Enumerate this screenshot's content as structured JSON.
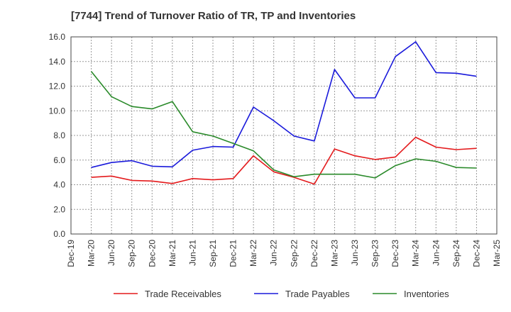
{
  "chart_data": {
    "type": "line",
    "title": "[7744]  Trend of Turnover Ratio of TR, TP and Inventories",
    "xlabel": "",
    "ylabel": "",
    "ylim": [
      0,
      16
    ],
    "yticks": [
      "0.0",
      "2.0",
      "4.0",
      "6.0",
      "8.0",
      "10.0",
      "12.0",
      "14.0",
      "16.0"
    ],
    "categories": [
      "Dec-19",
      "Mar-20",
      "Jun-20",
      "Sep-20",
      "Dec-20",
      "Mar-21",
      "Jun-21",
      "Sep-21",
      "Dec-21",
      "Mar-22",
      "Jun-22",
      "Sep-22",
      "Dec-22",
      "Mar-23",
      "Jun-23",
      "Sep-23",
      "Dec-23",
      "Mar-24",
      "Jun-24",
      "Sep-24",
      "Dec-24",
      "Mar-25"
    ],
    "grid": true,
    "legend_position": "bottom",
    "series": [
      {
        "name": "Trade Receivables",
        "color": "#e41a1c",
        "values": [
          null,
          4.6,
          4.7,
          4.35,
          4.3,
          4.1,
          4.5,
          4.4,
          4.5,
          6.35,
          5.05,
          4.6,
          4.05,
          6.9,
          6.35,
          6.05,
          6.25,
          7.85,
          7.05,
          6.85,
          6.95,
          null
        ]
      },
      {
        "name": "Trade Payables",
        "color": "#1a1adb",
        "values": [
          null,
          5.4,
          5.8,
          5.95,
          5.5,
          5.45,
          6.8,
          7.1,
          7.05,
          10.3,
          9.2,
          7.95,
          7.55,
          13.35,
          11.05,
          11.05,
          14.4,
          15.6,
          13.1,
          13.05,
          12.8,
          null
        ]
      },
      {
        "name": "Inventories",
        "color": "#2a8a2a",
        "values": [
          null,
          13.2,
          11.15,
          10.35,
          10.15,
          10.75,
          8.3,
          7.95,
          7.35,
          6.75,
          5.2,
          4.65,
          4.85,
          4.85,
          4.85,
          4.55,
          5.55,
          6.1,
          5.9,
          5.4,
          5.35,
          null
        ]
      }
    ]
  }
}
